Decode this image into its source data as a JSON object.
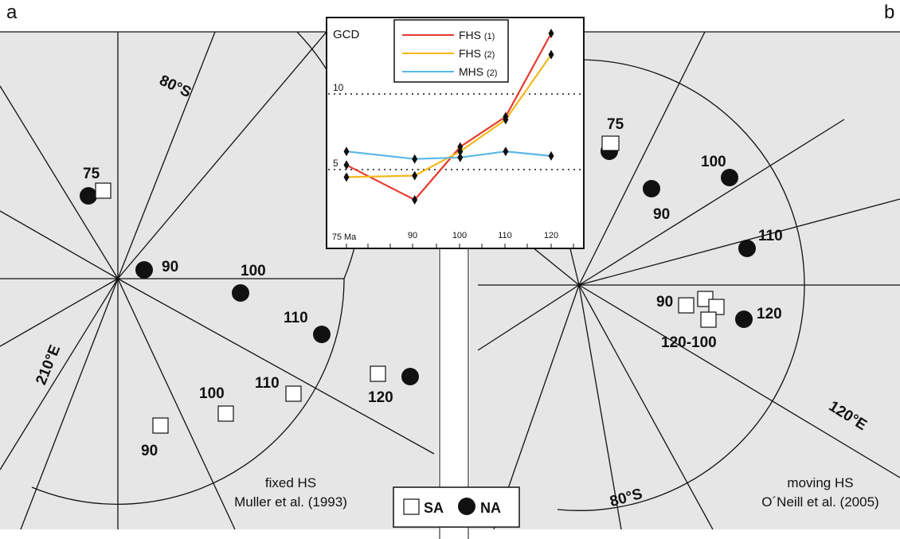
{
  "panels": {
    "left_letter": "a",
    "right_letter": "b"
  },
  "left_map": {
    "lat_label": "80°S",
    "lon_label": "210°E",
    "caption_line1": "fixed HS",
    "caption_line2": "Muller et al. (1993)",
    "na_labels": [
      "75",
      "90",
      "100",
      "110",
      "120"
    ],
    "sa_labels": [
      "90",
      "100",
      "110"
    ]
  },
  "right_map": {
    "lat_label": "80°S",
    "lon_label": "120°E",
    "caption_line1": "moving HS",
    "caption_line2": "O´Neill et al. (2005)",
    "na_labels": [
      "75",
      "100",
      "90",
      "110",
      "120"
    ],
    "sa_labels": [
      "90",
      "120-100"
    ]
  },
  "inset": {
    "ylabel": "GCD",
    "y_tick_10": "10",
    "y_tick_5": "5",
    "x_ticks": [
      "75 Ma",
      "90",
      "100",
      "110",
      "120"
    ],
    "legend": [
      {
        "name": "FHS",
        "suffix": "(1)",
        "color": "#e8392e"
      },
      {
        "name": "FHS",
        "suffix": "(2)",
        "color": "#f5b81c"
      },
      {
        "name": "MHS",
        "suffix": "(2)",
        "color": "#5ab8e6"
      }
    ]
  },
  "chart_data": {
    "type": "line",
    "x": [
      75,
      90,
      100,
      110,
      120
    ],
    "ylim": [
      0,
      14
    ],
    "series": [
      {
        "name": "FHS (1)",
        "values": [
          5.3,
          3.0,
          6.5,
          8.5,
          14.0
        ]
      },
      {
        "name": "FHS (2)",
        "values": [
          4.5,
          4.6,
          6.2,
          8.3,
          12.6
        ]
      },
      {
        "name": "MHS (2)",
        "values": [
          6.2,
          5.7,
          5.8,
          6.2,
          5.9
        ]
      }
    ],
    "colors": [
      "#e8392e",
      "#f5b81c",
      "#5ab8e6"
    ]
  },
  "legend_box": {
    "sa_label": "SA",
    "na_label": "NA"
  }
}
